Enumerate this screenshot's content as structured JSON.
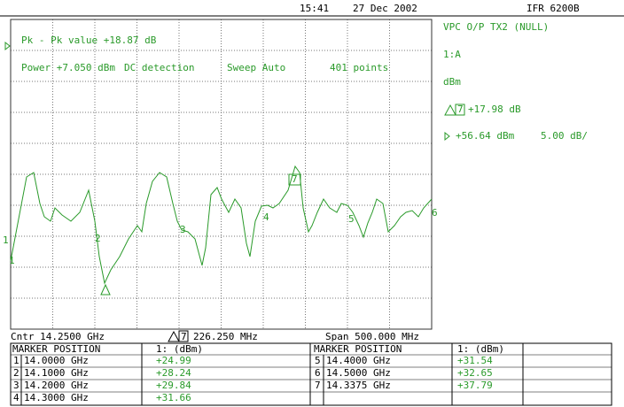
{
  "header": {
    "time": "15:41",
    "date": "27 Dec 2002",
    "instrument": "IFR 6200B"
  },
  "plot": {
    "pk_pk": "Pk - Pk value +18.87 dB",
    "power": "Power +7.050 dBm",
    "detection": "DC detection",
    "sweep": "Sweep Auto",
    "points": "401 points",
    "trace_markers": [
      "1",
      "2",
      "3",
      "4",
      "5",
      "6",
      "7"
    ]
  },
  "side": {
    "title": "VPC O/P TX2 (NULL)",
    "channel": "1:A",
    "units": "dBm",
    "delta_marker": "7",
    "delta_value": "+17.98 dB",
    "ref_level": "+56.64 dBm",
    "scale": "5.00 dB/"
  },
  "footer": {
    "center": "Cntr 14.2500 GHz",
    "delta_marker": "7",
    "delta_freq": "226.250 MHz",
    "span": "Span 500.000 MHz"
  },
  "table": {
    "header_left": [
      "MARKER POSITION",
      "1: (dBm)"
    ],
    "header_right": [
      "MARKER POSITION",
      "1: (dBm)"
    ],
    "left_rows": [
      [
        "1",
        "14.0000 GHz",
        "+24.99"
      ],
      [
        "2",
        "14.1000 GHz",
        "+28.24"
      ],
      [
        "3",
        "14.2000 GHz",
        "+29.84"
      ],
      [
        "4",
        "14.3000 GHz",
        "+31.66"
      ]
    ],
    "right_rows": [
      [
        "5",
        "14.4000 GHz",
        "+31.54"
      ],
      [
        "6",
        "14.5000 GHz",
        "+32.65"
      ],
      [
        "7",
        "14.3375 GHz",
        "+37.79"
      ]
    ]
  }
}
